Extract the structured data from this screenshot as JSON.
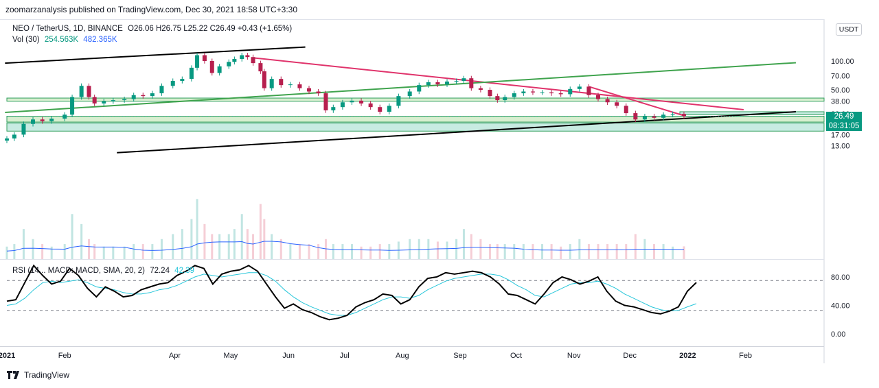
{
  "header": {
    "published_text": "zoomarzanalysis published on TradingView.com, Dec 30, 2021 18:58 UTC+3:30"
  },
  "legend": {
    "symbol": "NEO / TetherUS, 1D, BINANCE",
    "ohlc": "O26.06 H26.75 L25.22 C26.49 +0.43 (+1.65%)",
    "vol_label": "Vol (30)",
    "vol_value1": "254.563K",
    "vol_value2": "482.365K",
    "indicator_label": "RSI (14... MACD: MACD, SMA, 20, 2)",
    "indicator_value1": "72.24",
    "indicator_value2": "42.39"
  },
  "price_tag": {
    "price": "26.49",
    "countdown": "08:31:05"
  },
  "currency_button": "USDT",
  "footer": {
    "brand": "TradingView"
  },
  "colors": {
    "up": "#089981",
    "down": "#b71f4e",
    "pink_line": "#e0336b",
    "green_line": "#3fa34d",
    "trend_black": "#000000",
    "zone_fill": "#c8ebe2",
    "zone_fill_light": "#d8efd0",
    "volume_ma": "#2962ff",
    "rsi_line": "#000000",
    "rsi_signal": "#26c6da",
    "legend_green": "#089981",
    "legend_blue": "#2962ff"
  },
  "chart_data": [
    {
      "type": "line",
      "title": "NEO / TetherUS, 1D, BINANCE",
      "scale": "log",
      "x_ticks": [
        "2021",
        "Feb",
        "Apr",
        "May",
        "Jun",
        "Jul",
        "Aug",
        "Sep",
        "Oct",
        "Nov",
        "Dec",
        "2022",
        "Feb"
      ],
      "y_ticks": [
        13.0,
        17.0,
        22.0,
        28.0,
        38.0,
        50.0,
        70.0,
        100.0
      ],
      "y_tick_labels": [
        "13.00",
        "17.00",
        "22.00",
        "28.00",
        "38.00",
        "50.00",
        "70.00",
        "100.00"
      ],
      "ylim": [
        10.5,
        140
      ],
      "series": [
        {
          "name": "NEO / TetherUS",
          "x": [
            "2021-01-01",
            "2021-01-05",
            "2021-01-10",
            "2021-01-15",
            "2021-01-20",
            "2021-01-25",
            "2021-02-01",
            "2021-02-05",
            "2021-02-10",
            "2021-02-14",
            "2021-02-17",
            "2021-02-22",
            "2021-02-27",
            "2021-03-05",
            "2021-03-10",
            "2021-03-15",
            "2021-03-20",
            "2021-03-25",
            "2021-03-31",
            "2021-04-05",
            "2021-04-10",
            "2021-04-13",
            "2021-04-17",
            "2021-04-21",
            "2021-04-25",
            "2021-04-30",
            "2021-05-03",
            "2021-05-07",
            "2021-05-10",
            "2021-05-13",
            "2021-05-17",
            "2021-05-19",
            "2021-05-23",
            "2021-05-28",
            "2021-06-02",
            "2021-06-07",
            "2021-06-12",
            "2021-06-17",
            "2021-06-21",
            "2021-06-25",
            "2021-06-30",
            "2021-07-05",
            "2021-07-10",
            "2021-07-15",
            "2021-07-20",
            "2021-07-25",
            "2021-07-30",
            "2021-08-05",
            "2021-08-10",
            "2021-08-15",
            "2021-08-20",
            "2021-08-25",
            "2021-08-30",
            "2021-09-03",
            "2021-09-07",
            "2021-09-12",
            "2021-09-17",
            "2021-09-21",
            "2021-09-25",
            "2021-09-30",
            "2021-10-05",
            "2021-10-10",
            "2021-10-15",
            "2021-10-20",
            "2021-10-25",
            "2021-10-30",
            "2021-11-04",
            "2021-11-09",
            "2021-11-14",
            "2021-11-19",
            "2021-11-24",
            "2021-11-29",
            "2021-12-04",
            "2021-12-09",
            "2021-12-14",
            "2021-12-19",
            "2021-12-24",
            "2021-12-30"
          ],
          "values": [
            15.5,
            17.0,
            22.0,
            24.5,
            23.5,
            25.0,
            27.5,
            42.0,
            55.0,
            42.0,
            36.0,
            38.0,
            39.0,
            40.0,
            44.0,
            43.0,
            46.0,
            55.0,
            62.0,
            65.0,
            85.0,
            115.0,
            100.0,
            75.0,
            88.0,
            98.0,
            105.0,
            115.0,
            110.0,
            95.0,
            78.0,
            52.0,
            65.0,
            56.0,
            57.0,
            52.0,
            48.0,
            46.0,
            30.5,
            33.0,
            37.0,
            38.5,
            36.0,
            33.0,
            29.5,
            34.0,
            43.0,
            48.0,
            56.0,
            60.0,
            57.0,
            61.0,
            62.0,
            66.0,
            52.0,
            50.0,
            43.0,
            39.0,
            42.0,
            46.0,
            48.0,
            47.0,
            47.0,
            46.0,
            45.0,
            51.0,
            54.0,
            44.0,
            40.0,
            37.0,
            34.0,
            28.5,
            24.5,
            26.5,
            25.5,
            27.5,
            28.0,
            26.49
          ]
        }
      ],
      "volume": {
        "label": "Vol (30)",
        "values_k": [
          250,
          300,
          600,
          400,
          300,
          250,
          300,
          900,
          700,
          400,
          300,
          250,
          250,
          250,
          300,
          300,
          300,
          400,
          500,
          600,
          800,
          1200,
          700,
          500,
          500,
          500,
          600,
          900,
          600,
          500,
          1100,
          800,
          500,
          400,
          300,
          300,
          300,
          300,
          400,
          300,
          300,
          300,
          250,
          250,
          300,
          300,
          350,
          400,
          400,
          400,
          350,
          350,
          400,
          600,
          500,
          400,
          300,
          300,
          300,
          300,
          300,
          300,
          300,
          300,
          250,
          300,
          400,
          300,
          300,
          300,
          300,
          300,
          500,
          400,
          300,
          300,
          250,
          254.563
        ],
        "ma_label": "482.365K"
      },
      "annotations": [
        {
          "type": "horizontal_zone",
          "from": 38.0,
          "to": 41.0
        },
        {
          "type": "horizontal_zone",
          "from": 23.0,
          "to": 26.5
        },
        {
          "type": "horizontal_zone",
          "from": 18.5,
          "to": 22.5
        },
        {
          "type": "horizontal_line",
          "value": 26.49,
          "style": "dotted"
        },
        {
          "type": "trendline",
          "color": "pink",
          "from": [
            "2021-05-13",
            108
          ],
          "to": [
            "2022-01-31",
            31
          ]
        },
        {
          "type": "trendline",
          "color": "pink",
          "from": [
            "2021-11-09",
            54
          ],
          "to": [
            "2021-12-31",
            26.5
          ]
        },
        {
          "type": "trendline",
          "color": "green",
          "from": [
            "2020-12-31",
            29
          ],
          "to": [
            "2022-02-28",
            96
          ]
        },
        {
          "type": "trendline",
          "color": "black",
          "from": [
            "2020-12-31",
            95
          ],
          "to": [
            "2021-06-10",
            140
          ]
        },
        {
          "type": "trendline",
          "color": "black",
          "from": [
            "2021-03-01",
            11
          ],
          "to": [
            "2022-02-28",
            29.5
          ]
        }
      ]
    },
    {
      "type": "line",
      "title": "RSI (14... MACD: MACD, SMA, 20, 2)",
      "y_ticks": [
        0,
        40,
        80
      ],
      "y_tick_labels": [
        "0.00",
        "40.00",
        "80.00"
      ],
      "ylim": [
        -10,
        100
      ],
      "reference_lines": [
        75,
        33
      ],
      "series": [
        {
          "name": "RSI",
          "values": [
            46,
            48,
            72,
            96,
            82,
            70,
            74,
            92,
            82,
            64,
            52,
            66,
            60,
            52,
            54,
            62,
            66,
            70,
            72,
            82,
            88,
            96,
            92,
            70,
            84,
            88,
            90,
            96,
            88,
            70,
            52,
            36,
            42,
            34,
            30,
            24,
            20,
            22,
            26,
            38,
            44,
            48,
            56,
            54,
            42,
            48,
            66,
            78,
            80,
            86,
            84,
            86,
            88,
            86,
            80,
            70,
            56,
            54,
            48,
            42,
            56,
            72,
            80,
            76,
            70,
            74,
            80,
            60,
            46,
            40,
            38,
            34,
            30,
            28,
            32,
            38,
            60,
            72.24
          ]
        },
        {
          "name": "Signal",
          "values": [
            40,
            42,
            50,
            62,
            72,
            74,
            72,
            74,
            76,
            72,
            66,
            64,
            62,
            58,
            56,
            56,
            58,
            62,
            64,
            68,
            74,
            80,
            84,
            82,
            80,
            82,
            84,
            86,
            86,
            82,
            74,
            62,
            52,
            44,
            38,
            33,
            28,
            26,
            26,
            30,
            36,
            42,
            48,
            52,
            52,
            50,
            54,
            62,
            68,
            74,
            78,
            80,
            82,
            84,
            84,
            82,
            76,
            68,
            62,
            54,
            52,
            58,
            64,
            70,
            72,
            72,
            74,
            70,
            64,
            56,
            50,
            44,
            38,
            34,
            32,
            33,
            38,
            42.39
          ]
        }
      ]
    }
  ]
}
